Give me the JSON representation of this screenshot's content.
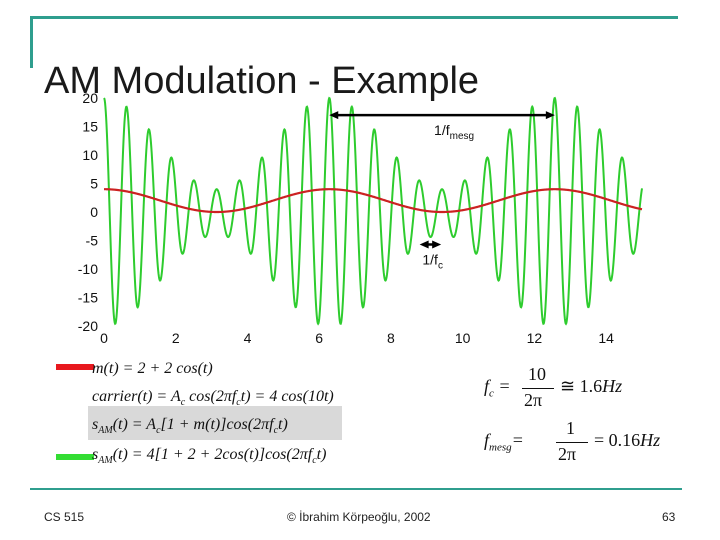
{
  "title": "AM Modulation - Example",
  "colors": {
    "frame": "#2f9e8e",
    "carrier_series": "#2ecc2e",
    "message_series": "#cc2222"
  },
  "chart_data": {
    "type": "line",
    "title": "",
    "xlabel": "",
    "ylabel": "",
    "xlim": [
      0,
      15
    ],
    "ylim": [
      -20,
      20
    ],
    "x_ticks": [
      "0",
      "2",
      "4",
      "6",
      "8",
      "10",
      "12",
      "14"
    ],
    "y_ticks": [
      "20",
      "15",
      "10",
      "5",
      "0",
      "-5",
      "-10",
      "-15",
      "-20"
    ],
    "grid": false,
    "series": [
      {
        "expression": "4*(1+2+2*cos(t))*cos(10t)",
        "color": "#2ecc2e"
      },
      {
        "expression": "2+2*cos(t)",
        "color": "#cc2222"
      }
    ],
    "annotations": {
      "period_mesg": {
        "label": "1/f",
        "sub": "mesg",
        "from": 6.28,
        "to": 12.57,
        "y": 17
      },
      "period_c": {
        "label": "1/f",
        "sub": "c",
        "from": 8.8,
        "to": 9.4,
        "y": -5.7
      }
    }
  },
  "equations": {
    "m": "m(t) = 2 + 2 cos(t)",
    "carrier": "carrier(t) = Aᴄ cos(2πfᴄt) = 4 cos(10t)",
    "sam_general": "s_AM(t) = A_c[1 + m(t)]cos(2π f_c t)",
    "sam_specific": "s_AM(t) = 4[1 + 2 + 2cos(t)]cos(2π f_c t)",
    "fc": "f_c = 10 / 2π ≅ 1.6Hz",
    "fmesg": "f_mesg = 1 / 2π = 0.16Hz"
  },
  "footer": {
    "course": "CS 515",
    "copyright": "© İbrahim Körpeoğlu, 2002",
    "page": "63"
  }
}
